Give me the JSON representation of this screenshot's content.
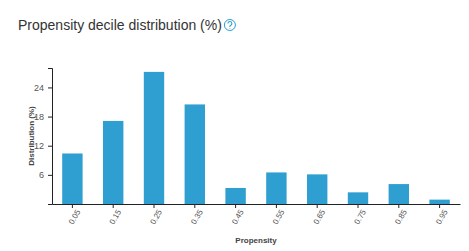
{
  "chart_data": {
    "type": "bar",
    "title": "Propensity decile distribution (%)",
    "x_label": "Propensity",
    "y_label": "Distribution (%)",
    "categories": [
      "0.05",
      "0.15",
      "0.25",
      "0.35",
      "0.45",
      "0.55",
      "0.65",
      "0.75",
      "0.85",
      "0.95"
    ],
    "values": [
      10.4,
      17.1,
      27.2,
      20.5,
      3.3,
      6.5,
      6.1,
      2.4,
      4.1,
      0.9
    ],
    "color": "#2e9fd0",
    "ylim": [
      0,
      28
    ],
    "yticks": [
      6,
      12,
      18,
      24
    ],
    "grid": false
  }
}
